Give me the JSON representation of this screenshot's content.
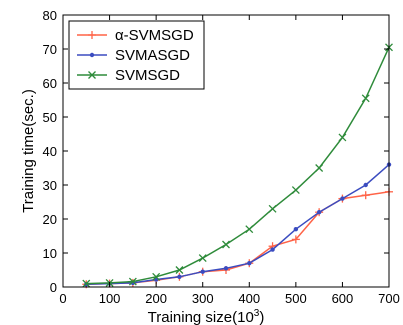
{
  "chart_data": {
    "type": "line",
    "title": "",
    "xlabel": "Training size(10",
    "xlabel_sup": "3",
    "xlabel_suffix": ")",
    "ylabel": "Training time(sec.)",
    "xlim": [
      0,
      700
    ],
    "ylim": [
      0,
      80
    ],
    "xticks": [
      0,
      100,
      200,
      300,
      400,
      500,
      600,
      700
    ],
    "yticks": [
      0,
      10,
      20,
      30,
      40,
      50,
      60,
      70,
      80
    ],
    "grid": false,
    "legend_position": "top-left",
    "series": [
      {
        "name": "α-SVMSGD",
        "color": "#ff6347",
        "marker": "plus",
        "x": [
          50,
          100,
          150,
          200,
          250,
          300,
          350,
          400,
          450,
          500,
          550,
          600,
          650,
          700
        ],
        "y": [
          0.8,
          1.0,
          1.2,
          2.0,
          3.0,
          4.5,
          5.0,
          7.0,
          12.0,
          14.0,
          22.0,
          26.0,
          27.0,
          28.0
        ]
      },
      {
        "name": "SVMASGD",
        "color": "#3b4cc0",
        "marker": "dot",
        "x": [
          50,
          100,
          150,
          200,
          250,
          300,
          350,
          400,
          450,
          500,
          550,
          600,
          650,
          700
        ],
        "y": [
          0.8,
          1.0,
          1.2,
          2.2,
          3.0,
          4.5,
          5.5,
          7.0,
          11.0,
          17.0,
          22.0,
          26.0,
          30.0,
          36.0
        ]
      },
      {
        "name": "SVMSGD",
        "color": "#2e8b3a",
        "marker": "x",
        "x": [
          50,
          100,
          150,
          200,
          250,
          300,
          350,
          400,
          450,
          500,
          550,
          600,
          650,
          700
        ],
        "y": [
          1.0,
          1.2,
          1.6,
          3.0,
          5.0,
          8.5,
          12.5,
          17.0,
          23.0,
          28.5,
          35.0,
          44.0,
          55.5,
          70.5
        ]
      }
    ]
  }
}
